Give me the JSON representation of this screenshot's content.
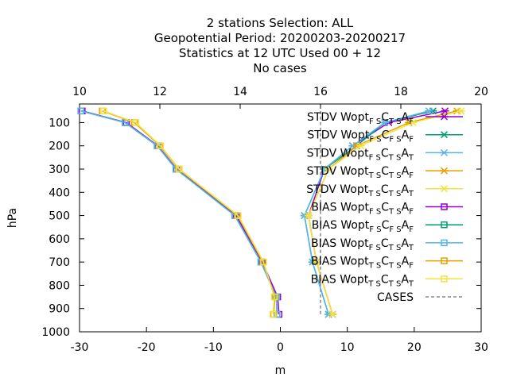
{
  "chart_data": {
    "type": "line",
    "title_lines": [
      "2 stations Selection: ALL",
      "Geopotential  Period: 20200203-20200217",
      "Statistics at 12 UTC  Used  00 + 12",
      "No cases"
    ],
    "xlabel": "m",
    "ylabel": "hPa",
    "xlim": [
      -30,
      30
    ],
    "x2lim": [
      10,
      20
    ],
    "ylim": [
      1000,
      20
    ],
    "x_ticks": [
      "-30",
      "-20",
      "-10",
      "0",
      "10",
      "20",
      "30"
    ],
    "x2_ticks": [
      "10",
      "12",
      "14",
      "16",
      "18",
      "20"
    ],
    "y_ticks": [
      "100",
      "200",
      "300",
      "400",
      "500",
      "600",
      "700",
      "800",
      "900",
      "1000"
    ],
    "legend_position": "top-right",
    "series": [
      {
        "name": "STDV Wopt",
        "name_sub": "F S",
        "name_tail": "C",
        "name_sub2": "T S",
        "name_tail2": "A",
        "name_sub3": "F",
        "color": "#9400d3",
        "marker": "x",
        "axis": "x2",
        "points": [
          [
            19.1,
            50
          ],
          [
            17.7,
            100
          ],
          [
            16.8,
            200
          ],
          [
            16.1,
            300
          ],
          [
            15.7,
            500
          ],
          [
            15.9,
            700
          ],
          [
            16.3,
            925
          ]
        ]
      },
      {
        "name": "STDV Wopt",
        "name_sub": "F S",
        "name_tail": "C",
        "name_sub2": "F S",
        "name_tail2": "A",
        "name_sub3": "F",
        "color": "#009e73",
        "marker": "x",
        "axis": "x2",
        "points": [
          [
            18.8,
            50
          ],
          [
            17.6,
            100
          ],
          [
            16.9,
            200
          ],
          [
            16.1,
            300
          ],
          [
            15.6,
            500
          ],
          [
            15.8,
            700
          ],
          [
            16.2,
            925
          ]
        ]
      },
      {
        "name": "STDV Wopt",
        "name_sub": "F S",
        "name_tail": "C",
        "name_sub2": "T S",
        "name_tail2": "A",
        "name_sub3": "T",
        "color": "#56b4e9",
        "marker": "x",
        "axis": "x2",
        "points": [
          [
            18.7,
            50
          ],
          [
            17.6,
            100
          ],
          [
            16.8,
            200
          ],
          [
            16.1,
            300
          ],
          [
            15.6,
            500
          ],
          [
            15.8,
            700
          ],
          [
            16.2,
            925
          ]
        ]
      },
      {
        "name": "STDV Wopt",
        "name_sub": "T S",
        "name_tail": "C",
        "name_sub2": "T S",
        "name_tail2": "A",
        "name_sub3": "F",
        "color": "#e69f00",
        "marker": "x",
        "axis": "x2",
        "points": [
          [
            19.4,
            50
          ],
          [
            18.2,
            100
          ],
          [
            16.9,
            200
          ],
          [
            16.2,
            300
          ],
          [
            15.7,
            500
          ],
          [
            15.9,
            700
          ],
          [
            16.3,
            925
          ]
        ]
      },
      {
        "name": "STDV Wopt",
        "name_sub": "T S",
        "name_tail": "C",
        "name_sub2": "T S",
        "name_tail2": "A",
        "name_sub3": "T",
        "color": "#f0e442",
        "marker": "x",
        "axis": "x2",
        "points": [
          [
            19.5,
            50
          ],
          [
            18.3,
            100
          ],
          [
            17.0,
            200
          ],
          [
            16.2,
            300
          ],
          [
            15.7,
            500
          ],
          [
            15.9,
            700
          ],
          [
            16.3,
            925
          ]
        ]
      },
      {
        "name": "BIAS Wopt",
        "name_sub": "F S",
        "name_tail": "C",
        "name_sub2": "T S",
        "name_tail2": "A",
        "name_sub3": "F",
        "color": "#9400d3",
        "marker": "square",
        "axis": "x",
        "points": [
          [
            -29.6,
            50
          ],
          [
            -23.0,
            100
          ],
          [
            -18.3,
            200
          ],
          [
            -15.5,
            300
          ],
          [
            -6.6,
            500
          ],
          [
            -2.7,
            700
          ],
          [
            -0.4,
            850
          ],
          [
            -0.2,
            925
          ]
        ]
      },
      {
        "name": "BIAS Wopt",
        "name_sub": "F S",
        "name_tail": "C",
        "name_sub2": "F S",
        "name_tail2": "A",
        "name_sub3": "F",
        "color": "#009e73",
        "marker": "square",
        "axis": "x",
        "points": [
          [
            -29.8,
            50
          ],
          [
            -23.2,
            100
          ],
          [
            -18.4,
            200
          ],
          [
            -15.6,
            300
          ],
          [
            -6.8,
            500
          ],
          [
            -2.9,
            700
          ],
          [
            -0.6,
            850
          ],
          [
            -0.5,
            925
          ]
        ]
      },
      {
        "name": "BIAS Wopt",
        "name_sub": "F S",
        "name_tail": "C",
        "name_sub2": "T S",
        "name_tail2": "A",
        "name_sub3": "T",
        "color": "#56b4e9",
        "marker": "square",
        "axis": "x",
        "points": [
          [
            -29.8,
            50
          ],
          [
            -23.2,
            100
          ],
          [
            -18.4,
            200
          ],
          [
            -15.6,
            300
          ],
          [
            -6.8,
            500
          ],
          [
            -2.9,
            700
          ],
          [
            -0.6,
            850
          ],
          [
            -0.5,
            925
          ]
        ]
      },
      {
        "name": "BIAS Wopt",
        "name_sub": "T S",
        "name_tail": "C",
        "name_sub2": "T S",
        "name_tail2": "A",
        "name_sub3": "F",
        "color": "#e69f00",
        "marker": "square",
        "axis": "x",
        "points": [
          [
            -26.6,
            50
          ],
          [
            -21.8,
            100
          ],
          [
            -18.0,
            200
          ],
          [
            -15.2,
            300
          ],
          [
            -6.4,
            500
          ],
          [
            -2.6,
            700
          ],
          [
            -0.8,
            850
          ],
          [
            -1.0,
            925
          ]
        ]
      },
      {
        "name": "BIAS Wopt",
        "name_sub": "T S",
        "name_tail": "C",
        "name_sub2": "T S",
        "name_tail2": "A",
        "name_sub3": "T",
        "color": "#f0e442",
        "marker": "square",
        "axis": "x",
        "points": [
          [
            -26.4,
            50
          ],
          [
            -21.6,
            100
          ],
          [
            -17.9,
            200
          ],
          [
            -15.1,
            300
          ],
          [
            -6.3,
            500
          ],
          [
            -2.5,
            700
          ],
          [
            -0.9,
            850
          ],
          [
            -1.1,
            925
          ]
        ]
      }
    ],
    "cases_series": {
      "name": "CASES",
      "color": "#888888",
      "dash": true,
      "points": [
        [
          16.0,
          50
        ],
        [
          16.0,
          300
        ],
        [
          16.0,
          925
        ]
      ]
    },
    "axis_colors": {
      "frame": "#000000",
      "background": "#ffffff"
    }
  }
}
